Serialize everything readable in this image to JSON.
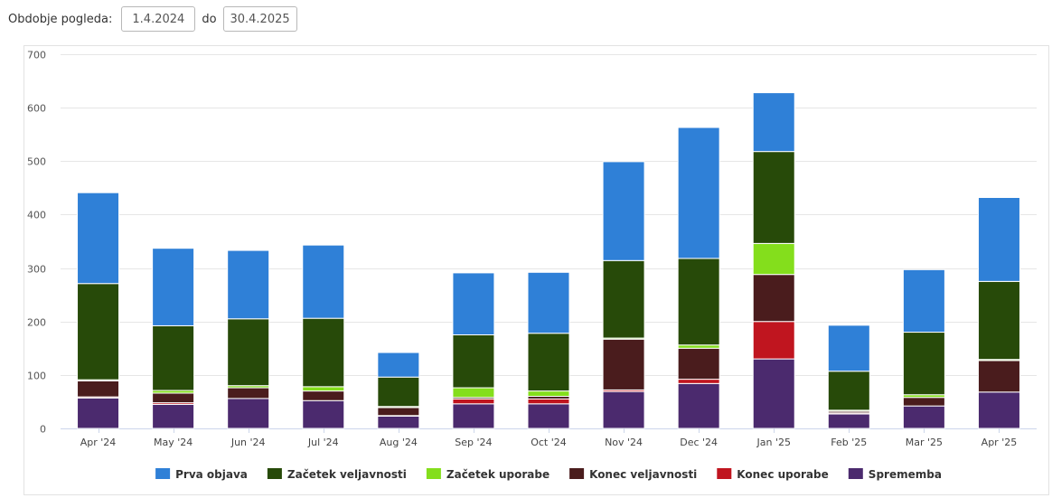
{
  "filter": {
    "label": "Obdobje pogleda:",
    "from": "1.4.2024",
    "separator": "do",
    "to": "30.4.2025"
  },
  "chart_data": {
    "type": "bar",
    "stacked": true,
    "title": "",
    "xlabel": "",
    "ylabel": "",
    "ylim": [
      0,
      700
    ],
    "yticks": [
      0,
      100,
      200,
      300,
      400,
      500,
      600,
      700
    ],
    "grid": true,
    "legend_position": "bottom",
    "categories": [
      "Apr '24",
      "May '24",
      "Jun '24",
      "Jul '24",
      "Aug '24",
      "Sep '24",
      "Oct '24",
      "Nov '24",
      "Dec '24",
      "Jan '25",
      "Feb '25",
      "Mar '25",
      "Apr '25"
    ],
    "series": [
      {
        "name": "Sprememba",
        "color": "#4b2a6e",
        "values": [
          57,
          45,
          56,
          52,
          23,
          46,
          46,
          69,
          84,
          130,
          27,
          42,
          68
        ]
      },
      {
        "name": "Konec uporabe",
        "color": "#c0151f",
        "values": [
          2,
          3,
          0,
          0,
          1,
          9,
          9,
          3,
          8,
          70,
          2,
          0,
          0
        ]
      },
      {
        "name": "Konec veljavnosti",
        "color": "#4a1c1d",
        "values": [
          30,
          18,
          20,
          18,
          15,
          3,
          5,
          95,
          58,
          88,
          3,
          16,
          59
        ]
      },
      {
        "name": "Začetek uporabe",
        "color": "#84de1c",
        "values": [
          2,
          5,
          4,
          8,
          2,
          18,
          10,
          2,
          6,
          58,
          2,
          5,
          2
        ]
      },
      {
        "name": "Začetek veljavnosti",
        "color": "#274a09",
        "values": [
          180,
          121,
          125,
          128,
          55,
          99,
          108,
          145,
          162,
          172,
          73,
          117,
          146
        ]
      },
      {
        "name": "Prva objava",
        "color": "#2f80d7",
        "values": [
          170,
          145,
          128,
          137,
          46,
          116,
          114,
          185,
          245,
          110,
          86,
          117,
          157
        ]
      }
    ],
    "legend_order": [
      "Prva objava",
      "Začetek veljavnosti",
      "Začetek uporabe",
      "Konec veljavnosti",
      "Konec uporabe",
      "Sprememba"
    ]
  }
}
